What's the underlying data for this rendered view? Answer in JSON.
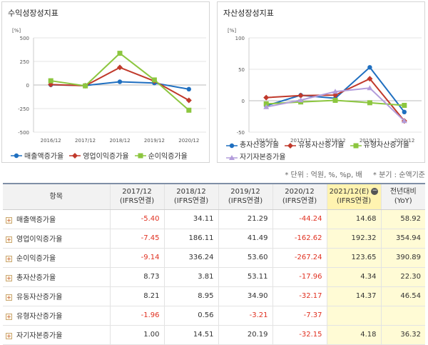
{
  "left_panel": {
    "title": "수익성장성지표"
  },
  "right_panel": {
    "title": "자산성장성지표"
  },
  "notes": {
    "unit": "* 단위 : 억원, %, %p, 배",
    "period": "* 분기 : 순액기준"
  },
  "colors": {
    "blue": "#1f6fc0",
    "red": "#c0392b",
    "green": "#8cc63f",
    "purple": "#b39ddb"
  },
  "chart_data": [
    {
      "type": "line",
      "unit_label": "[%]",
      "x": [
        "2016/12",
        "2017/12",
        "2018/12",
        "2019/12",
        "2020/12"
      ],
      "ylim": [
        -500,
        500
      ],
      "yticks": [
        -500,
        -250,
        0,
        250,
        500
      ],
      "series": [
        {
          "name": "매출액증가율",
          "color": "#1f6fc0",
          "marker": "circle",
          "values": [
            2,
            -5.4,
            34.11,
            21.29,
            -44.24
          ]
        },
        {
          "name": "영업이익증가율",
          "color": "#c0392b",
          "marker": "diamond",
          "values": [
            5,
            -7.45,
            186.11,
            41.49,
            -162.62
          ]
        },
        {
          "name": "순이익증가율",
          "color": "#8cc63f",
          "marker": "square",
          "values": [
            45,
            -9.14,
            336.24,
            53.6,
            -267.24
          ]
        }
      ]
    },
    {
      "type": "line",
      "unit_label": "[%]",
      "x": [
        "2016/12",
        "2017/12",
        "2018/12",
        "2019/12",
        "2020/12"
      ],
      "ylim": [
        -50,
        100
      ],
      "yticks": [
        -50,
        0,
        50,
        100
      ],
      "series": [
        {
          "name": "총자산증가율",
          "color": "#1f6fc0",
          "marker": "circle",
          "values": [
            -8,
            8.73,
            3.81,
            53.11,
            -17.96
          ]
        },
        {
          "name": "유동자산증가율",
          "color": "#c0392b",
          "marker": "diamond",
          "values": [
            5,
            8.21,
            8.95,
            34.9,
            -32.17
          ]
        },
        {
          "name": "유형자산증가율",
          "color": "#8cc63f",
          "marker": "square",
          "values": [
            -5,
            -1.96,
            0.56,
            -3.21,
            -7.37
          ]
        },
        {
          "name": "자기자본증가율",
          "color": "#b39ddb",
          "marker": "triangle",
          "values": [
            -10,
            1.0,
            14.51,
            20.19,
            -32.15
          ]
        }
      ]
    }
  ],
  "table": {
    "headers": [
      {
        "l1": "항목",
        "l2": ""
      },
      {
        "l1": "2017/12",
        "l2": "(IFRS연결)"
      },
      {
        "l1": "2018/12",
        "l2": "(IFRS연결)"
      },
      {
        "l1": "2019/12",
        "l2": "(IFRS연결)"
      },
      {
        "l1": "2020/12",
        "l2": "(IFRS연결)"
      },
      {
        "l1": "2021/12(E)",
        "l2": "(IFRS연결)"
      },
      {
        "l1": "전년대비",
        "l2": "(YoY)"
      }
    ],
    "rows": [
      {
        "label": "매출액증가율",
        "cells": [
          "-5.40",
          "34.11",
          "21.29",
          "-44.24",
          "14.68",
          "58.92"
        ]
      },
      {
        "label": "영업이익증가율",
        "cells": [
          "-7.45",
          "186.11",
          "41.49",
          "-162.62",
          "192.32",
          "354.94"
        ]
      },
      {
        "label": "순이익증가율",
        "cells": [
          "-9.14",
          "336.24",
          "53.60",
          "-267.24",
          "123.65",
          "390.89"
        ]
      },
      {
        "label": "총자산증가율",
        "cells": [
          "8.73",
          "3.81",
          "53.11",
          "-17.96",
          "4.34",
          "22.30"
        ]
      },
      {
        "label": "유동자산증가율",
        "cells": [
          "8.21",
          "8.95",
          "34.90",
          "-32.17",
          "14.37",
          "46.54"
        ]
      },
      {
        "label": "유형자산증가율",
        "cells": [
          "-1.96",
          "0.56",
          "-3.21",
          "-7.37",
          "",
          ""
        ]
      },
      {
        "label": "자기자본증가율",
        "cells": [
          "1.00",
          "14.51",
          "20.19",
          "-32.15",
          "4.18",
          "36.32"
        ]
      }
    ]
  }
}
